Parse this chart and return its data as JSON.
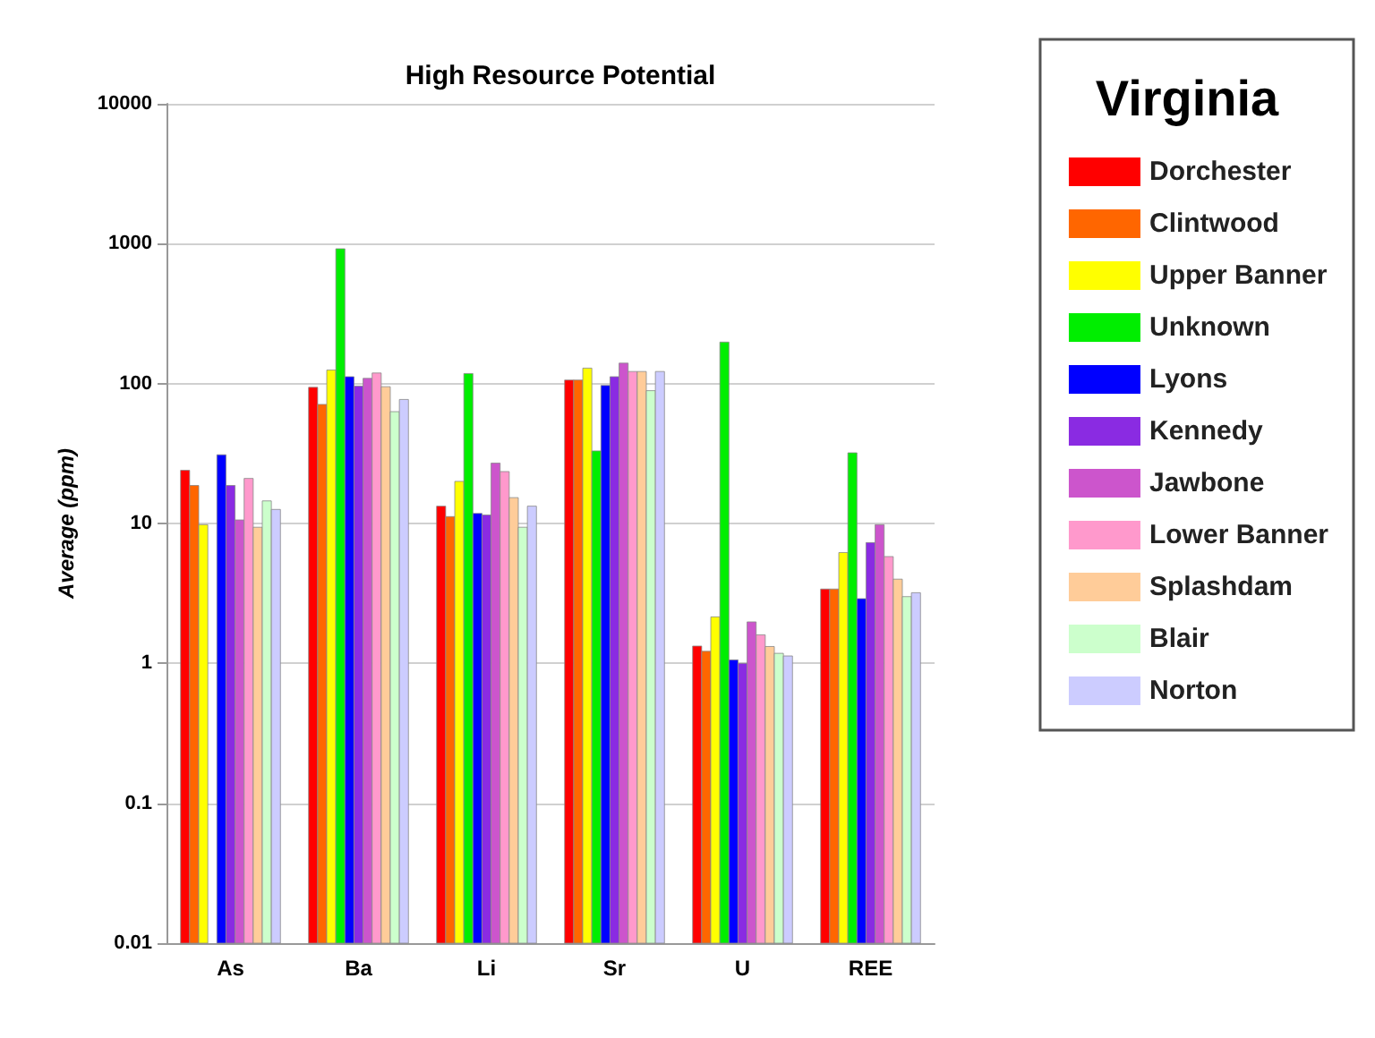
{
  "chart_data": {
    "type": "bar",
    "title": "High Resource Potential",
    "ylabel": "Average (ppm)",
    "legend_title": "Virginia",
    "categories": [
      "As",
      "Ba",
      "Li",
      "Sr",
      "U",
      "REE"
    ],
    "series": [
      {
        "name": "Dorchester",
        "color": "#ff0000",
        "values": [
          24,
          94,
          13.3,
          106,
          1.33,
          3.4
        ]
      },
      {
        "name": "Clintwood",
        "color": "#ff6600",
        "values": [
          18.7,
          71,
          11.2,
          106,
          1.22,
          3.4
        ]
      },
      {
        "name": "Upper Banner",
        "color": "#ffff00",
        "values": [
          9.8,
          125,
          20,
          129,
          2.15,
          6.2
        ]
      },
      {
        "name": "Unknown",
        "color": "#00ee00",
        "values": [
          null,
          920,
          118,
          33,
          198,
          32
        ]
      },
      {
        "name": "Lyons",
        "color": "#0000ff",
        "values": [
          31,
          112,
          11.8,
          97,
          1.06,
          2.9
        ]
      },
      {
        "name": "Kennedy",
        "color": "#8a2be2",
        "values": [
          18.7,
          96,
          11.5,
          112,
          1.0,
          7.3
        ]
      },
      {
        "name": "Jawbone",
        "color": "#cc55cc",
        "values": [
          10.6,
          109,
          27,
          140,
          1.98,
          9.8
        ]
      },
      {
        "name": "Lower Banner",
        "color": "#ff99cc",
        "values": [
          21,
          119,
          23.5,
          122,
          1.6,
          5.8
        ]
      },
      {
        "name": "Splashdam",
        "color": "#ffcc99",
        "values": [
          9.4,
          95,
          15.3,
          122,
          1.32,
          4.0
        ]
      },
      {
        "name": "Blair",
        "color": "#ccffcc",
        "values": [
          14.5,
          63,
          9.4,
          89,
          1.18,
          3.0
        ]
      },
      {
        "name": "Norton",
        "color": "#ccccff",
        "values": [
          12.6,
          77,
          13.3,
          122,
          1.13,
          3.2
        ]
      }
    ],
    "log": "y",
    "ylim": [
      0.01,
      10000
    ],
    "yticks": [
      0.01,
      0.1,
      1,
      10,
      100,
      1000,
      10000
    ],
    "grid": "y",
    "legend": "top right"
  }
}
